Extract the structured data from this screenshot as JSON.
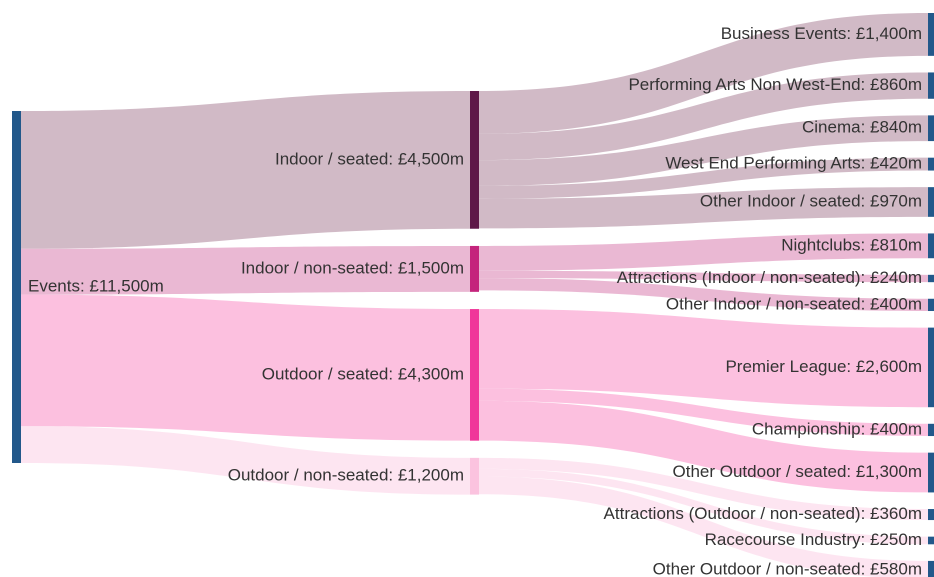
{
  "chart_data": {
    "type": "sankey",
    "nodes": [
      {
        "label": "Events: £11,500m",
        "value": 11500,
        "color": "#22588a"
      },
      {
        "label": "Indoor / seated: £4,500m",
        "value": 4500,
        "color": "#5e1848"
      },
      {
        "label": "Indoor / non-seated: £1,500m",
        "value": 1500,
        "color": "#c4247c"
      },
      {
        "label": "Outdoor / seated: £4,300m",
        "value": 4300,
        "color": "#f0369a"
      },
      {
        "label": "Outdoor / non-seated: £1,200m",
        "value": 1200,
        "color": "#fbc3df"
      },
      {
        "label": "Business Events: £1,400m",
        "value": 1400,
        "color": "#22588a"
      },
      {
        "label": "Performing Arts Non West-End: £860m",
        "value": 860,
        "color": "#22588a"
      },
      {
        "label": "Cinema: £840m",
        "value": 840,
        "color": "#22588a"
      },
      {
        "label": "West End Performing Arts: £420m",
        "value": 420,
        "color": "#22588a"
      },
      {
        "label": "Other Indoor / seated: £970m",
        "value": 970,
        "color": "#22588a"
      },
      {
        "label": "Nightclubs: £810m",
        "value": 810,
        "color": "#22588a"
      },
      {
        "label": "Attractions (Indoor / non-seated): £240m",
        "value": 240,
        "color": "#22588a"
      },
      {
        "label": "Other Indoor / non-seated: £400m",
        "value": 400,
        "color": "#22588a"
      },
      {
        "label": "Premier League: £2,600m",
        "value": 2600,
        "color": "#22588a"
      },
      {
        "label": "Championship: £400m",
        "value": 400,
        "color": "#22588a"
      },
      {
        "label": "Other Outdoor / seated: £1,300m",
        "value": 1300,
        "color": "#22588a"
      },
      {
        "label": "Attractions (Outdoor / non-seated): £360m",
        "value": 360,
        "color": "#22588a"
      },
      {
        "label": "Racecourse Industry: £250m",
        "value": 250,
        "color": "#22588a"
      },
      {
        "label": "Other Outdoor / non-seated: £580m",
        "value": 580,
        "color": "#22588a"
      }
    ],
    "links": [
      {
        "source": 0,
        "target": 1,
        "value": 4500,
        "color": "#c9aebc"
      },
      {
        "source": 0,
        "target": 2,
        "value": 1500,
        "color": "#e6accb"
      },
      {
        "source": 0,
        "target": 3,
        "value": 4300,
        "color": "#fbb5d9"
      },
      {
        "source": 0,
        "target": 4,
        "value": 1200,
        "color": "#fde0ee"
      },
      {
        "source": 1,
        "target": 5,
        "value": 1400,
        "color": "#c9aebc"
      },
      {
        "source": 1,
        "target": 6,
        "value": 860,
        "color": "#c9aebc"
      },
      {
        "source": 1,
        "target": 7,
        "value": 840,
        "color": "#c9aebc"
      },
      {
        "source": 1,
        "target": 8,
        "value": 420,
        "color": "#c9aebc"
      },
      {
        "source": 1,
        "target": 9,
        "value": 970,
        "color": "#c9aebc"
      },
      {
        "source": 2,
        "target": 10,
        "value": 810,
        "color": "#e6accb"
      },
      {
        "source": 2,
        "target": 11,
        "value": 240,
        "color": "#e6accb"
      },
      {
        "source": 2,
        "target": 12,
        "value": 400,
        "color": "#e6accb"
      },
      {
        "source": 3,
        "target": 13,
        "value": 2600,
        "color": "#fbb5d9"
      },
      {
        "source": 3,
        "target": 14,
        "value": 400,
        "color": "#fbb5d9"
      },
      {
        "source": 3,
        "target": 15,
        "value": 1300,
        "color": "#fbb5d9"
      },
      {
        "source": 4,
        "target": 16,
        "value": 360,
        "color": "#fde0ee"
      },
      {
        "source": 4,
        "target": 17,
        "value": 250,
        "color": "#fde0ee"
      },
      {
        "source": 4,
        "target": 18,
        "value": 580,
        "color": "#fde0ee"
      }
    ]
  }
}
